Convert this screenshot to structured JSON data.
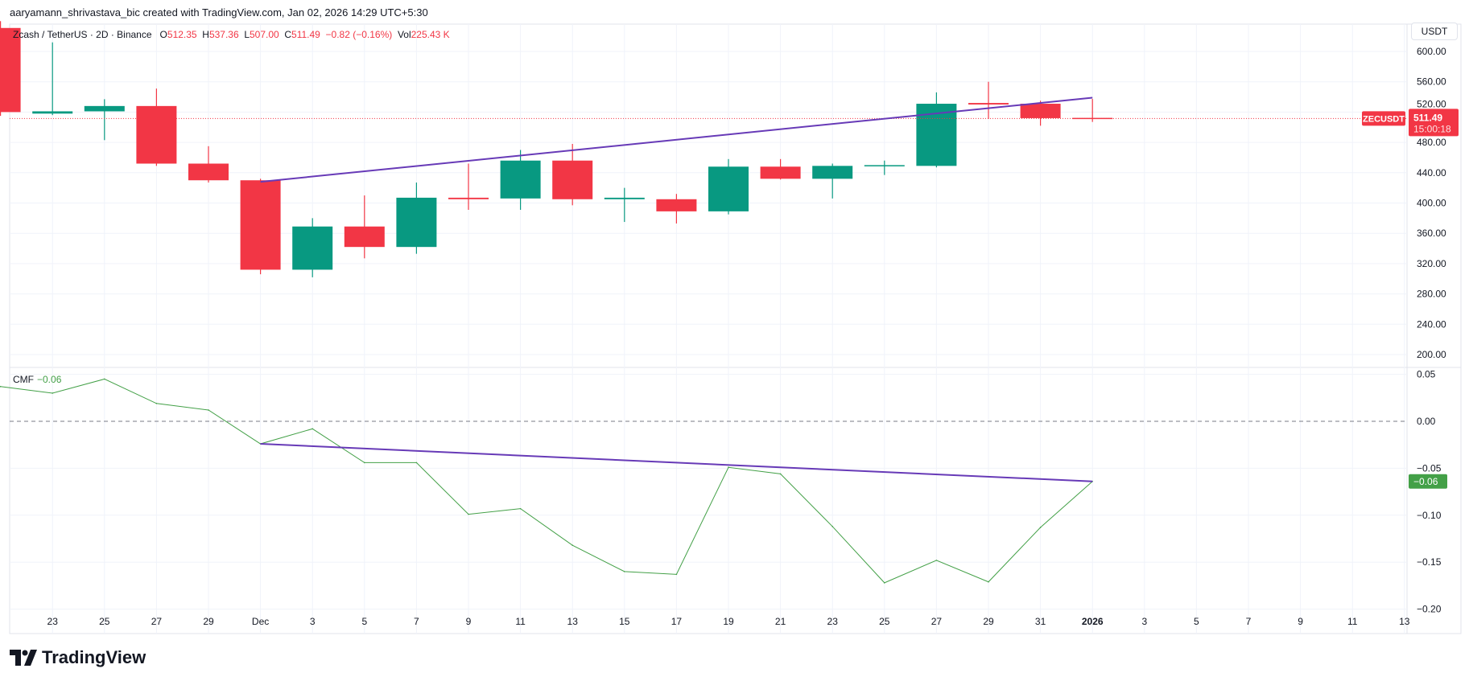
{
  "credit": "aaryamann_shrivastava_bic created with TradingView.com, Jan 02, 2026 14:29 UTC+5:30",
  "legend": {
    "symbol": "Zcash / TetherUS · 2D · Binance",
    "o_label": "O",
    "o": "512.35",
    "h_label": "H",
    "h": "537.36",
    "l_label": "L",
    "l": "507.00",
    "c_label": "C",
    "c": "511.49",
    "change": "−0.82 (−0.16%)",
    "vol_label": "Vol",
    "vol": "225.43 K"
  },
  "currency_button": "USDT",
  "price_tag": {
    "symbol": "ZECUSDT",
    "price": "511.49",
    "countdown": "15:00:18"
  },
  "cmf_legend": {
    "name": "CMF",
    "value": "−0.06"
  },
  "cmf_tag": "−0.06",
  "logo_text": "TradingView",
  "colors": {
    "up": "#089981",
    "down": "#f23645",
    "cmf": "#43a047",
    "trendline": "#673ab7",
    "grid": "#f0f3fa"
  },
  "chart_data": [
    {
      "type": "candlestick",
      "title": "Zcash / TetherUS · 2D · Binance",
      "dates": [
        "Nov 21",
        "Nov 23",
        "Nov 25",
        "Nov 27",
        "Nov 29",
        "Dec 1",
        "Dec 3",
        "Dec 5",
        "Dec 7",
        "Dec 9",
        "Dec 11",
        "Dec 13",
        "Dec 15",
        "Dec 17",
        "Dec 19",
        "Dec 21",
        "Dec 23",
        "Dec 25",
        "Dec 27",
        "Dec 29",
        "Dec 31",
        "Jan 2"
      ],
      "ohlc": [
        [
          631,
          640,
          515,
          520
        ],
        [
          518,
          612,
          516,
          521
        ],
        [
          521,
          537,
          483,
          528
        ],
        [
          528,
          551,
          449,
          452
        ],
        [
          452,
          475,
          427,
          430
        ],
        [
          430,
          432,
          306,
          312
        ],
        [
          312,
          380,
          302,
          369
        ],
        [
          369,
          410,
          327,
          342
        ],
        [
          342,
          427,
          333,
          407
        ],
        [
          407,
          452,
          391,
          405
        ],
        [
          406,
          470,
          391,
          456
        ],
        [
          456,
          478,
          397,
          405
        ],
        [
          405,
          420,
          375,
          407
        ],
        [
          405,
          412,
          373,
          389
        ],
        [
          389,
          458,
          385,
          448
        ],
        [
          448,
          458,
          431,
          432
        ],
        [
          432,
          452,
          406,
          449
        ],
        [
          449,
          456,
          437,
          450
        ],
        [
          449,
          546,
          447,
          531
        ],
        [
          532,
          560,
          511,
          530
        ],
        [
          531,
          535,
          502,
          512
        ],
        [
          512.35,
          537.36,
          507.0,
          511.49
        ]
      ],
      "y_ticks": [
        "600.00",
        "560.00",
        "520.00",
        "480.00",
        "440.00",
        "400.00",
        "360.00",
        "320.00",
        "280.00",
        "240.00",
        "200.00"
      ],
      "ylim": [
        200,
        600
      ],
      "last_price_line": 511.49,
      "trendline": {
        "from": [
          "Dec 1",
          428
        ],
        "to": [
          "Jan 2",
          539
        ]
      },
      "grid": true
    },
    {
      "type": "line",
      "title": "CMF",
      "dates": [
        "Nov 21",
        "Nov 23",
        "Nov 25",
        "Nov 27",
        "Nov 29",
        "Dec 1",
        "Dec 3",
        "Dec 5",
        "Dec 7",
        "Dec 9",
        "Dec 11",
        "Dec 13",
        "Dec 15",
        "Dec 17",
        "Dec 19",
        "Dec 21",
        "Dec 23",
        "Dec 25",
        "Dec 27",
        "Dec 29",
        "Dec 31",
        "Jan 2"
      ],
      "values": [
        0.037,
        0.03,
        0.045,
        0.019,
        0.012,
        -0.024,
        -0.008,
        -0.044,
        -0.044,
        -0.099,
        -0.093,
        -0.132,
        -0.16,
        -0.163,
        -0.049,
        -0.056,
        -0.112,
        -0.172,
        -0.148,
        -0.171,
        -0.113,
        -0.064
      ],
      "y_ticks": [
        "0.05",
        "0.00",
        "−0.05",
        "−0.10",
        "−0.15",
        "−0.20"
      ],
      "ylim": [
        -0.2,
        0.05
      ],
      "zero_line": 0,
      "trendline": {
        "from": [
          "Dec 1",
          -0.024
        ],
        "to": [
          "Jan 2",
          -0.064
        ]
      },
      "grid": true
    }
  ],
  "x_ticks": [
    "23",
    "25",
    "27",
    "29",
    "Dec",
    "3",
    "5",
    "7",
    "9",
    "11",
    "13",
    "15",
    "17",
    "19",
    "21",
    "23",
    "25",
    "27",
    "29",
    "31",
    "2026",
    "3",
    "5",
    "7",
    "9",
    "11",
    "13"
  ]
}
